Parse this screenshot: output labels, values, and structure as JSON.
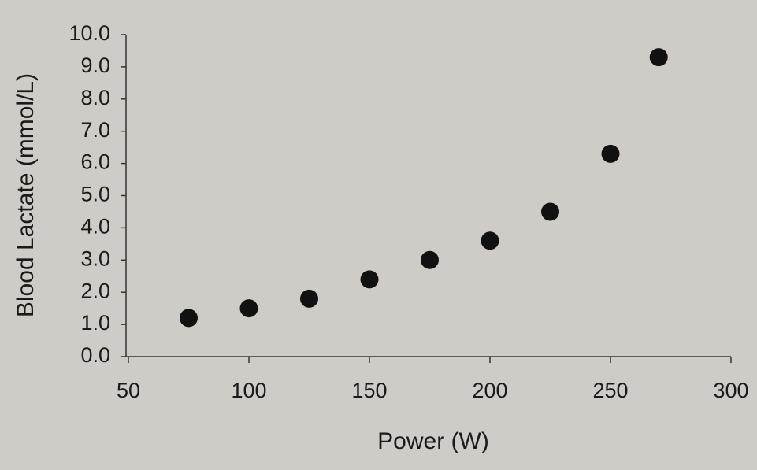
{
  "chart_data": {
    "type": "scatter",
    "x_label": "Power (W)",
    "y_label": "Blood Lactate (mmol/L)",
    "x": [
      75,
      100,
      125,
      150,
      175,
      200,
      225,
      250,
      270
    ],
    "series": [
      {
        "color": "#111111",
        "values": [
          1.2,
          1.5,
          1.8,
          2.4,
          3.0,
          3.6,
          4.5,
          6.3,
          9.3
        ]
      }
    ],
    "xlim": [
      50,
      300
    ],
    "xticks": [
      50,
      100,
      150,
      200,
      250,
      300
    ],
    "ylim": [
      0,
      10
    ],
    "yticks": [
      {
        "value": 0,
        "label": "0.0"
      },
      {
        "value": 1,
        "label": "1.0"
      },
      {
        "value": 2,
        "label": "2.0"
      },
      {
        "value": 3,
        "label": "3.0"
      },
      {
        "value": 4,
        "label": "4.0"
      },
      {
        "value": 5,
        "label": "5.0"
      },
      {
        "value": 6,
        "label": "6.0"
      },
      {
        "value": 7,
        "label": "7.0"
      },
      {
        "value": 8,
        "label": "8.0"
      },
      {
        "value": 9,
        "label": "9.0"
      },
      {
        "value": 10,
        "label": "10.0"
      }
    ],
    "grid": false
  }
}
